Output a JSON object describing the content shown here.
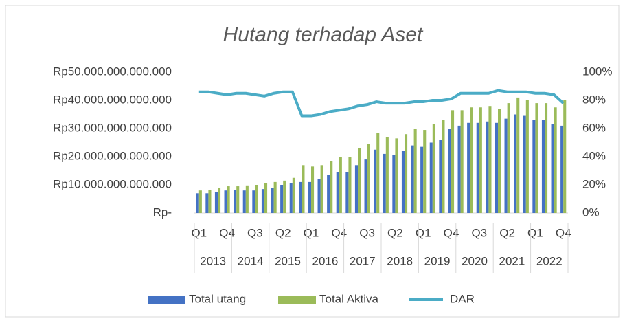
{
  "chart_data": {
    "type": "combo",
    "title": "Hutang terhadap Aset",
    "categories": [
      "Q1",
      null,
      null,
      "Q4",
      null,
      null,
      "Q3",
      null,
      null,
      "Q2",
      null,
      null,
      "Q1",
      null,
      null,
      "Q4",
      null,
      null,
      "Q3",
      null,
      null,
      "Q2",
      null,
      null,
      "Q1",
      null,
      null,
      "Q4",
      null,
      null,
      "Q3",
      null,
      null,
      "Q2",
      null,
      null,
      "Q1",
      null,
      null,
      "Q4"
    ],
    "year_groups": [
      "2013",
      "2014",
      "2015",
      "2016",
      "2017",
      "2018",
      "2019",
      "2020",
      "2021",
      "2022"
    ],
    "series": [
      {
        "name": "Total utang",
        "type": "bar",
        "color": "#4472c4",
        "values": [
          7000000000000.0,
          7000000000000.0,
          7500000000000.0,
          8000000000000.0,
          8200000000000.0,
          8000000000000.0,
          8000000000000.0,
          8500000000000.0,
          9000000000000.0,
          10000000000000.0,
          10500000000000.0,
          11000000000000.0,
          11000000000000.0,
          12000000000000.0,
          13500000000000.0,
          14500000000000.0,
          14500000000000.0,
          17000000000000.0,
          19000000000000.0,
          22500000000000.0,
          21000000000000.0,
          20500000000000.0,
          22000000000000.0,
          24000000000000.0,
          23500000000000.0,
          25000000000000.0,
          26000000000000.0,
          30000000000000.0,
          31000000000000.0,
          32000000000000.0,
          32000000000000.0,
          32500000000000.0,
          32000000000000.0,
          33500000000000.0,
          35000000000000.0,
          34500000000000.0,
          33000000000000.0,
          33000000000000.0,
          31500000000000.0,
          31000000000000.0
        ]
      },
      {
        "name": "Total Aktiva",
        "type": "bar",
        "color": "#9bbb59",
        "values": [
          8000000000000.0,
          8200000000000.0,
          9000000000000.0,
          9500000000000.0,
          9500000000000.0,
          9800000000000.0,
          10000000000000.0,
          10500000000000.0,
          11000000000000.0,
          11500000000000.0,
          12500000000000.0,
          17000000000000.0,
          16500000000000.0,
          17000000000000.0,
          18500000000000.0,
          20000000000000.0,
          20000000000000.0,
          23000000000000.0,
          24500000000000.0,
          28500000000000.0,
          27000000000000.0,
          26500000000000.0,
          28000000000000.0,
          30000000000000.0,
          29500000000000.0,
          31500000000000.0,
          33000000000000.0,
          36500000000000.0,
          36500000000000.0,
          37500000000000.0,
          37500000000000.0,
          38000000000000.0,
          37000000000000.0,
          39000000000000.0,
          41000000000000.0,
          40000000000000.0,
          39000000000000.0,
          39000000000000.0,
          37500000000000.0,
          40000000000000.0
        ]
      },
      {
        "name": "DAR",
        "type": "line",
        "axis": "y2",
        "color": "#4bacc6",
        "values": [
          86,
          86,
          85,
          84,
          85,
          85,
          84,
          83,
          85,
          86,
          86,
          69,
          69,
          70,
          72,
          73,
          74,
          76,
          77,
          79,
          78,
          78,
          78,
          79,
          79,
          80,
          80,
          81,
          85,
          85,
          85,
          85,
          87,
          86,
          86,
          86,
          85,
          85,
          84,
          78
        ]
      }
    ],
    "ylim": [
      0,
      50000000000000.0
    ],
    "yticks": [
      {
        "value": 0,
        "label": "Rp-"
      },
      {
        "value": 10000000000000.0,
        "label": "Rp10.000.000.000.000"
      },
      {
        "value": 20000000000000.0,
        "label": "Rp20.000.000.000.000"
      },
      {
        "value": 30000000000000.0,
        "label": "Rp30.000.000.000.000"
      },
      {
        "value": 40000000000000.0,
        "label": "Rp40.000.000.000.000"
      },
      {
        "value": 50000000000000.0,
        "label": "Rp50.000.000.000.000"
      }
    ],
    "y2lim": [
      0,
      100
    ],
    "y2ticks": [
      {
        "value": 0,
        "label": "0%"
      },
      {
        "value": 20,
        "label": "20%"
      },
      {
        "value": 40,
        "label": "40%"
      },
      {
        "value": 60,
        "label": "60%"
      },
      {
        "value": 80,
        "label": "80%"
      },
      {
        "value": 100,
        "label": "100%"
      }
    ],
    "legend": "bottom"
  }
}
